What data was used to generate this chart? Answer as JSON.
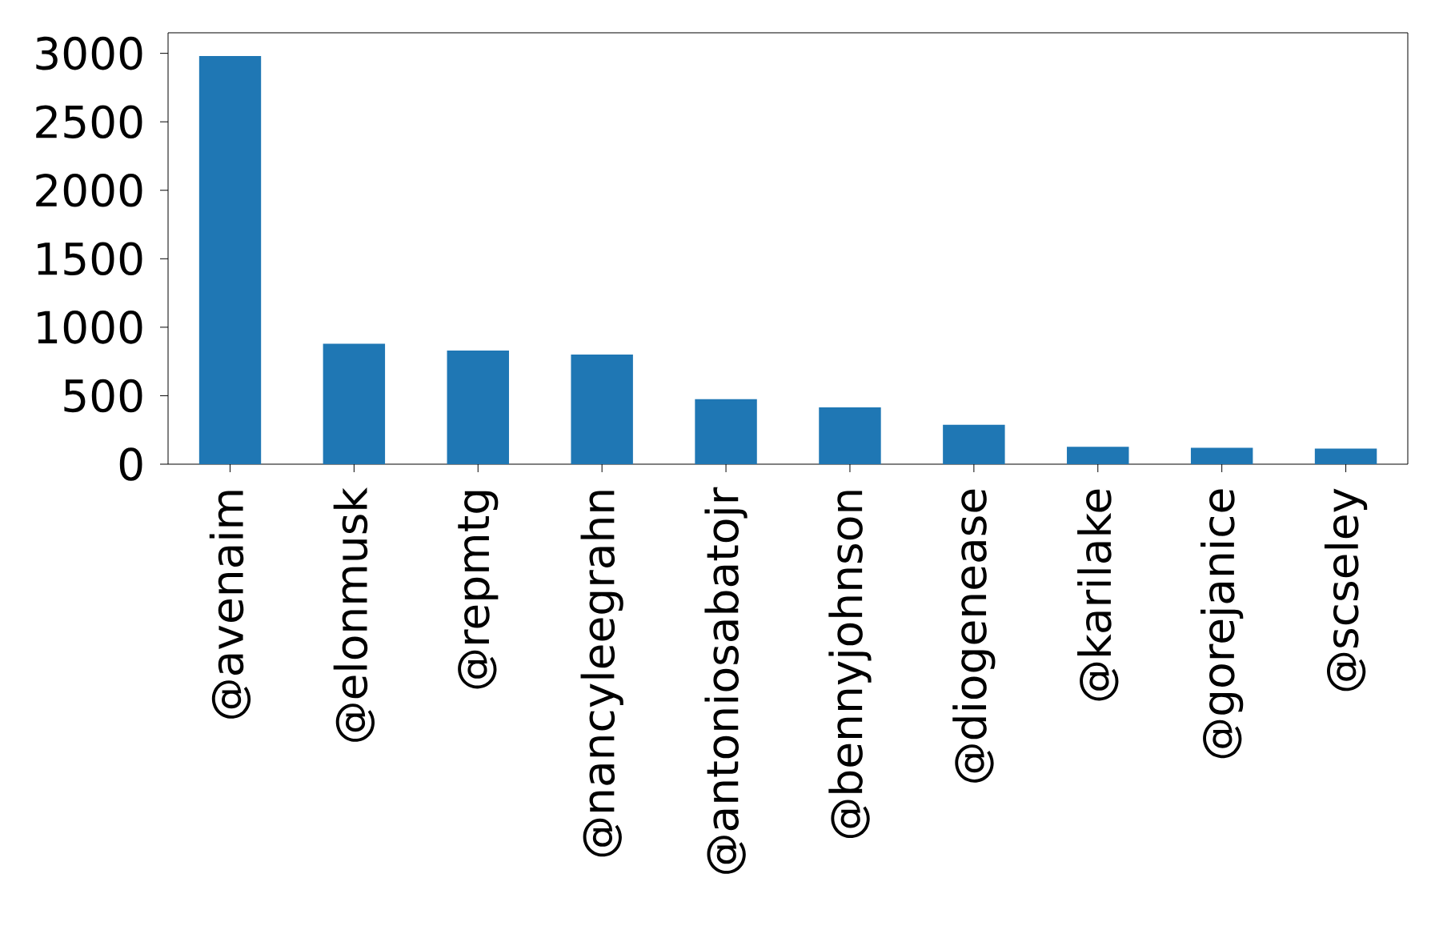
{
  "chart_data": {
    "type": "bar",
    "categories": [
      "@avenaim",
      "@elonmusk",
      "@repmtg",
      "@nancyleegrahn",
      "@antoniosabatojr",
      "@bennyjohnson",
      "@diogenease",
      "@karilake",
      "@gorejanice",
      "@scseley"
    ],
    "values": [
      2980,
      880,
      830,
      800,
      475,
      415,
      288,
      127,
      120,
      114
    ],
    "color": "#1f77b4",
    "ylim": [
      0,
      3150
    ],
    "yticks": [
      0,
      500,
      1000,
      1500,
      2000,
      2500,
      3000
    ]
  }
}
